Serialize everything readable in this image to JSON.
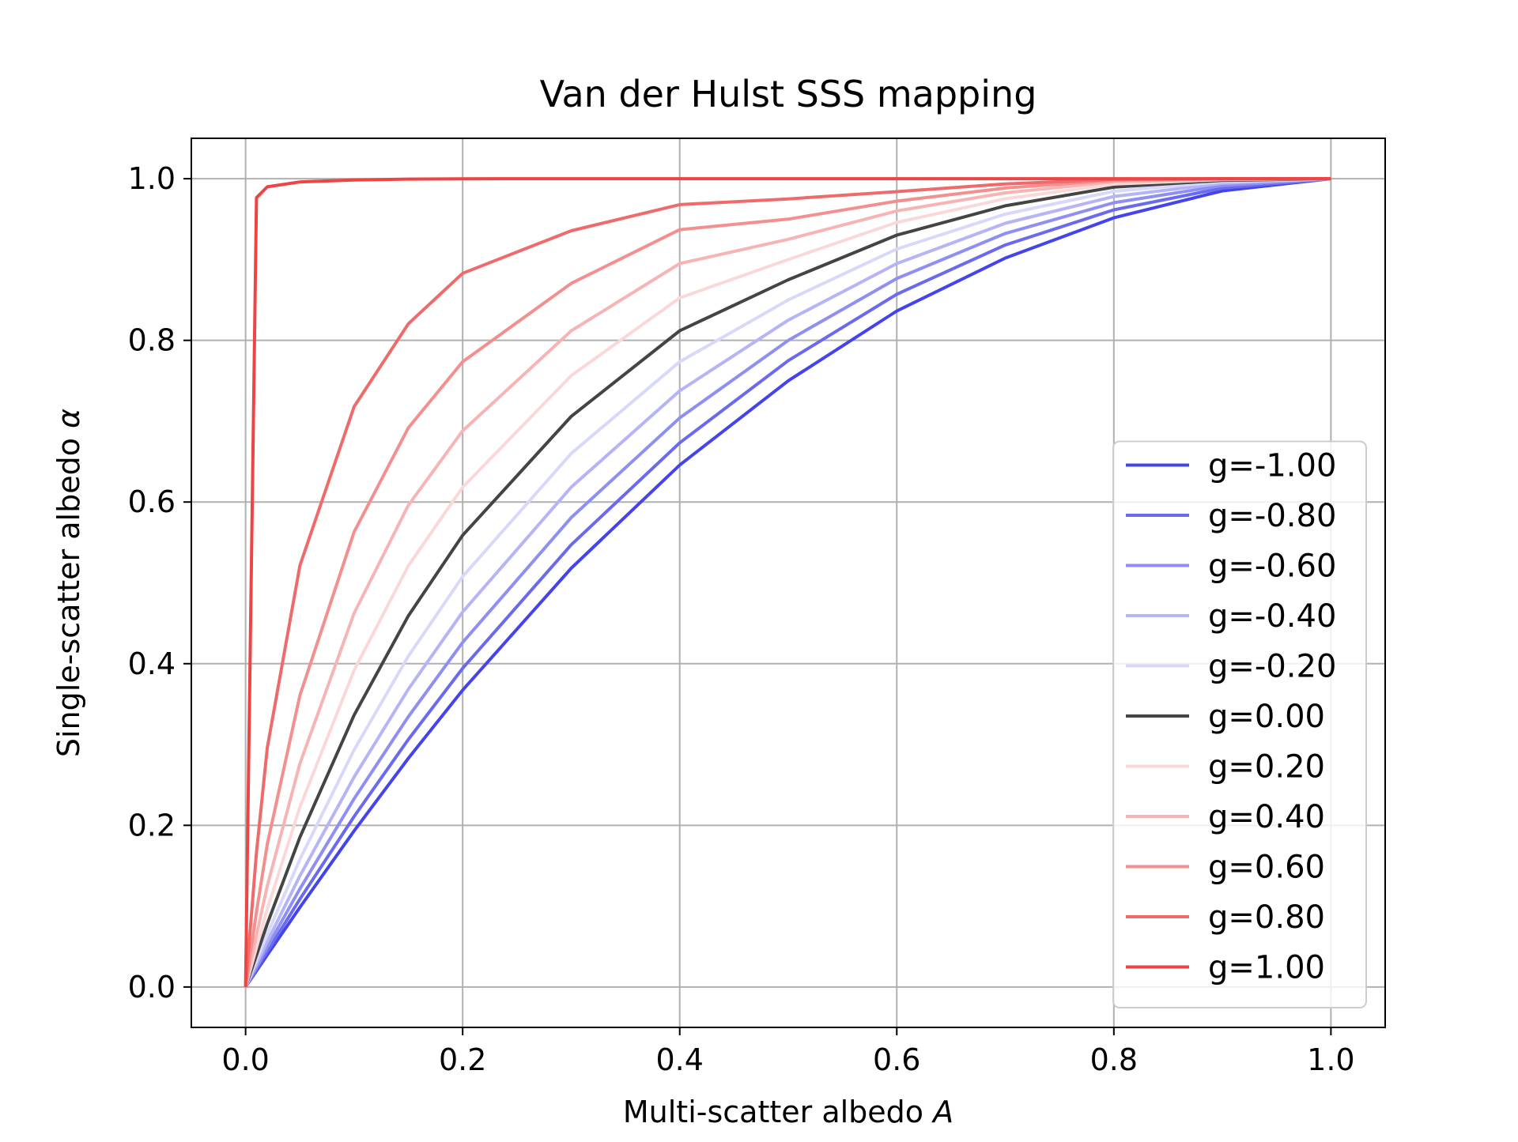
{
  "chart_data": {
    "type": "line",
    "title": "Van der Hulst SSS mapping",
    "xlabel_text": "Multi-scatter albedo ",
    "xlabel_symbol": "A",
    "ylabel_text": "Single-scatter albedo ",
    "ylabel_symbol": "α",
    "xlim": [
      -0.05,
      1.05
    ],
    "ylim": [
      -0.05,
      1.05
    ],
    "xticks": [
      0.0,
      0.2,
      0.4,
      0.6,
      0.8,
      1.0
    ],
    "yticks": [
      0.0,
      0.2,
      0.4,
      0.6,
      0.8,
      1.0
    ],
    "xtick_labels": [
      "0.0",
      "0.2",
      "0.4",
      "0.6",
      "0.8",
      "1.0"
    ],
    "ytick_labels": [
      "0.0",
      "0.2",
      "0.4",
      "0.6",
      "0.8",
      "1.0"
    ],
    "grid": true,
    "legend_position": "lower-right",
    "x": [
      0.0,
      0.01,
      0.02,
      0.05,
      0.1,
      0.15,
      0.2,
      0.3,
      0.4,
      0.5,
      0.6,
      0.7,
      0.8,
      0.9,
      1.0
    ],
    "series": [
      {
        "name": "g=-1.00",
        "color": "#4444ee",
        "values": [
          0.0,
          0.0199,
          0.0398,
          0.0985,
          0.1932,
          0.2829,
          0.3673,
          0.5181,
          0.6458,
          0.75,
          0.8364,
          0.9019,
          0.9516,
          0.985,
          1.0
        ]
      },
      {
        "name": "g=-0.80",
        "color": "#6a6aef",
        "values": [
          0.0,
          0.0221,
          0.0441,
          0.1087,
          0.211,
          0.3063,
          0.3943,
          0.5471,
          0.6733,
          0.775,
          0.8571,
          0.918,
          0.9615,
          0.9884,
          1.0
        ]
      },
      {
        "name": "g=-0.60",
        "color": "#8f8ff3",
        "values": [
          0.0,
          0.0249,
          0.0496,
          0.1214,
          0.2329,
          0.3345,
          0.4264,
          0.5808,
          0.7041,
          0.8,
          0.8765,
          0.9323,
          0.9703,
          0.9915,
          1.0
        ]
      },
      {
        "name": "g=-0.40",
        "color": "#b4b4f7",
        "values": [
          0.0,
          0.0284,
          0.0564,
          0.1374,
          0.2598,
          0.3685,
          0.464,
          0.6184,
          0.7376,
          0.825,
          0.895,
          0.9449,
          0.978,
          0.9944,
          1.0
        ]
      },
      {
        "name": "g=-0.20",
        "color": "#d8d8fb",
        "values": [
          0.0,
          0.0331,
          0.0656,
          0.158,
          0.2935,
          0.4093,
          0.5078,
          0.6601,
          0.7736,
          0.85,
          0.913,
          0.9562,
          0.9845,
          0.9964,
          1.0
        ]
      },
      {
        "name": "g=0.00",
        "color": "#444444",
        "values": [
          0.0,
          0.0395,
          0.0783,
          0.1853,
          0.3364,
          0.4592,
          0.5589,
          0.7059,
          0.8119,
          0.875,
          0.9302,
          0.9665,
          0.9896,
          0.998,
          1.0
        ]
      },
      {
        "name": "g=0.20",
        "color": "#fbd8d8",
        "values": [
          0.0,
          0.049,
          0.0965,
          0.2226,
          0.3919,
          0.5212,
          0.6183,
          0.7564,
          0.8526,
          0.9,
          0.946,
          0.9752,
          0.9934,
          0.999,
          1.0
        ]
      },
      {
        "name": "g=0.40",
        "color": "#f7b4b4",
        "values": [
          0.0,
          0.0643,
          0.1251,
          0.2763,
          0.4625,
          0.596,
          0.6881,
          0.8118,
          0.895,
          0.925,
          0.9601,
          0.9825,
          0.9962,
          0.9996,
          1.0
        ]
      },
      {
        "name": "g=0.60",
        "color": "#f38f8f",
        "values": [
          0.0,
          0.093,
          0.1768,
          0.3607,
          0.5631,
          0.6918,
          0.7736,
          0.8705,
          0.937,
          0.95,
          0.9723,
          0.9885,
          0.9981,
          0.9999,
          1.0
        ]
      },
      {
        "name": "g=0.80",
        "color": "#ef6a6a",
        "values": [
          0.0,
          0.1667,
          0.2961,
          0.5213,
          0.718,
          0.8205,
          0.883,
          0.9356,
          0.968,
          0.975,
          0.984,
          0.9936,
          0.9993,
          1.0,
          1.0
        ]
      },
      {
        "name": "g=1.00",
        "color": "#ee4444",
        "values": [
          0.0,
          0.9765,
          0.99,
          0.996,
          0.9985,
          0.9995,
          0.9999,
          1.0,
          1.0,
          1.0,
          1.0,
          1.0,
          1.0,
          1.0,
          1.0
        ]
      }
    ]
  }
}
